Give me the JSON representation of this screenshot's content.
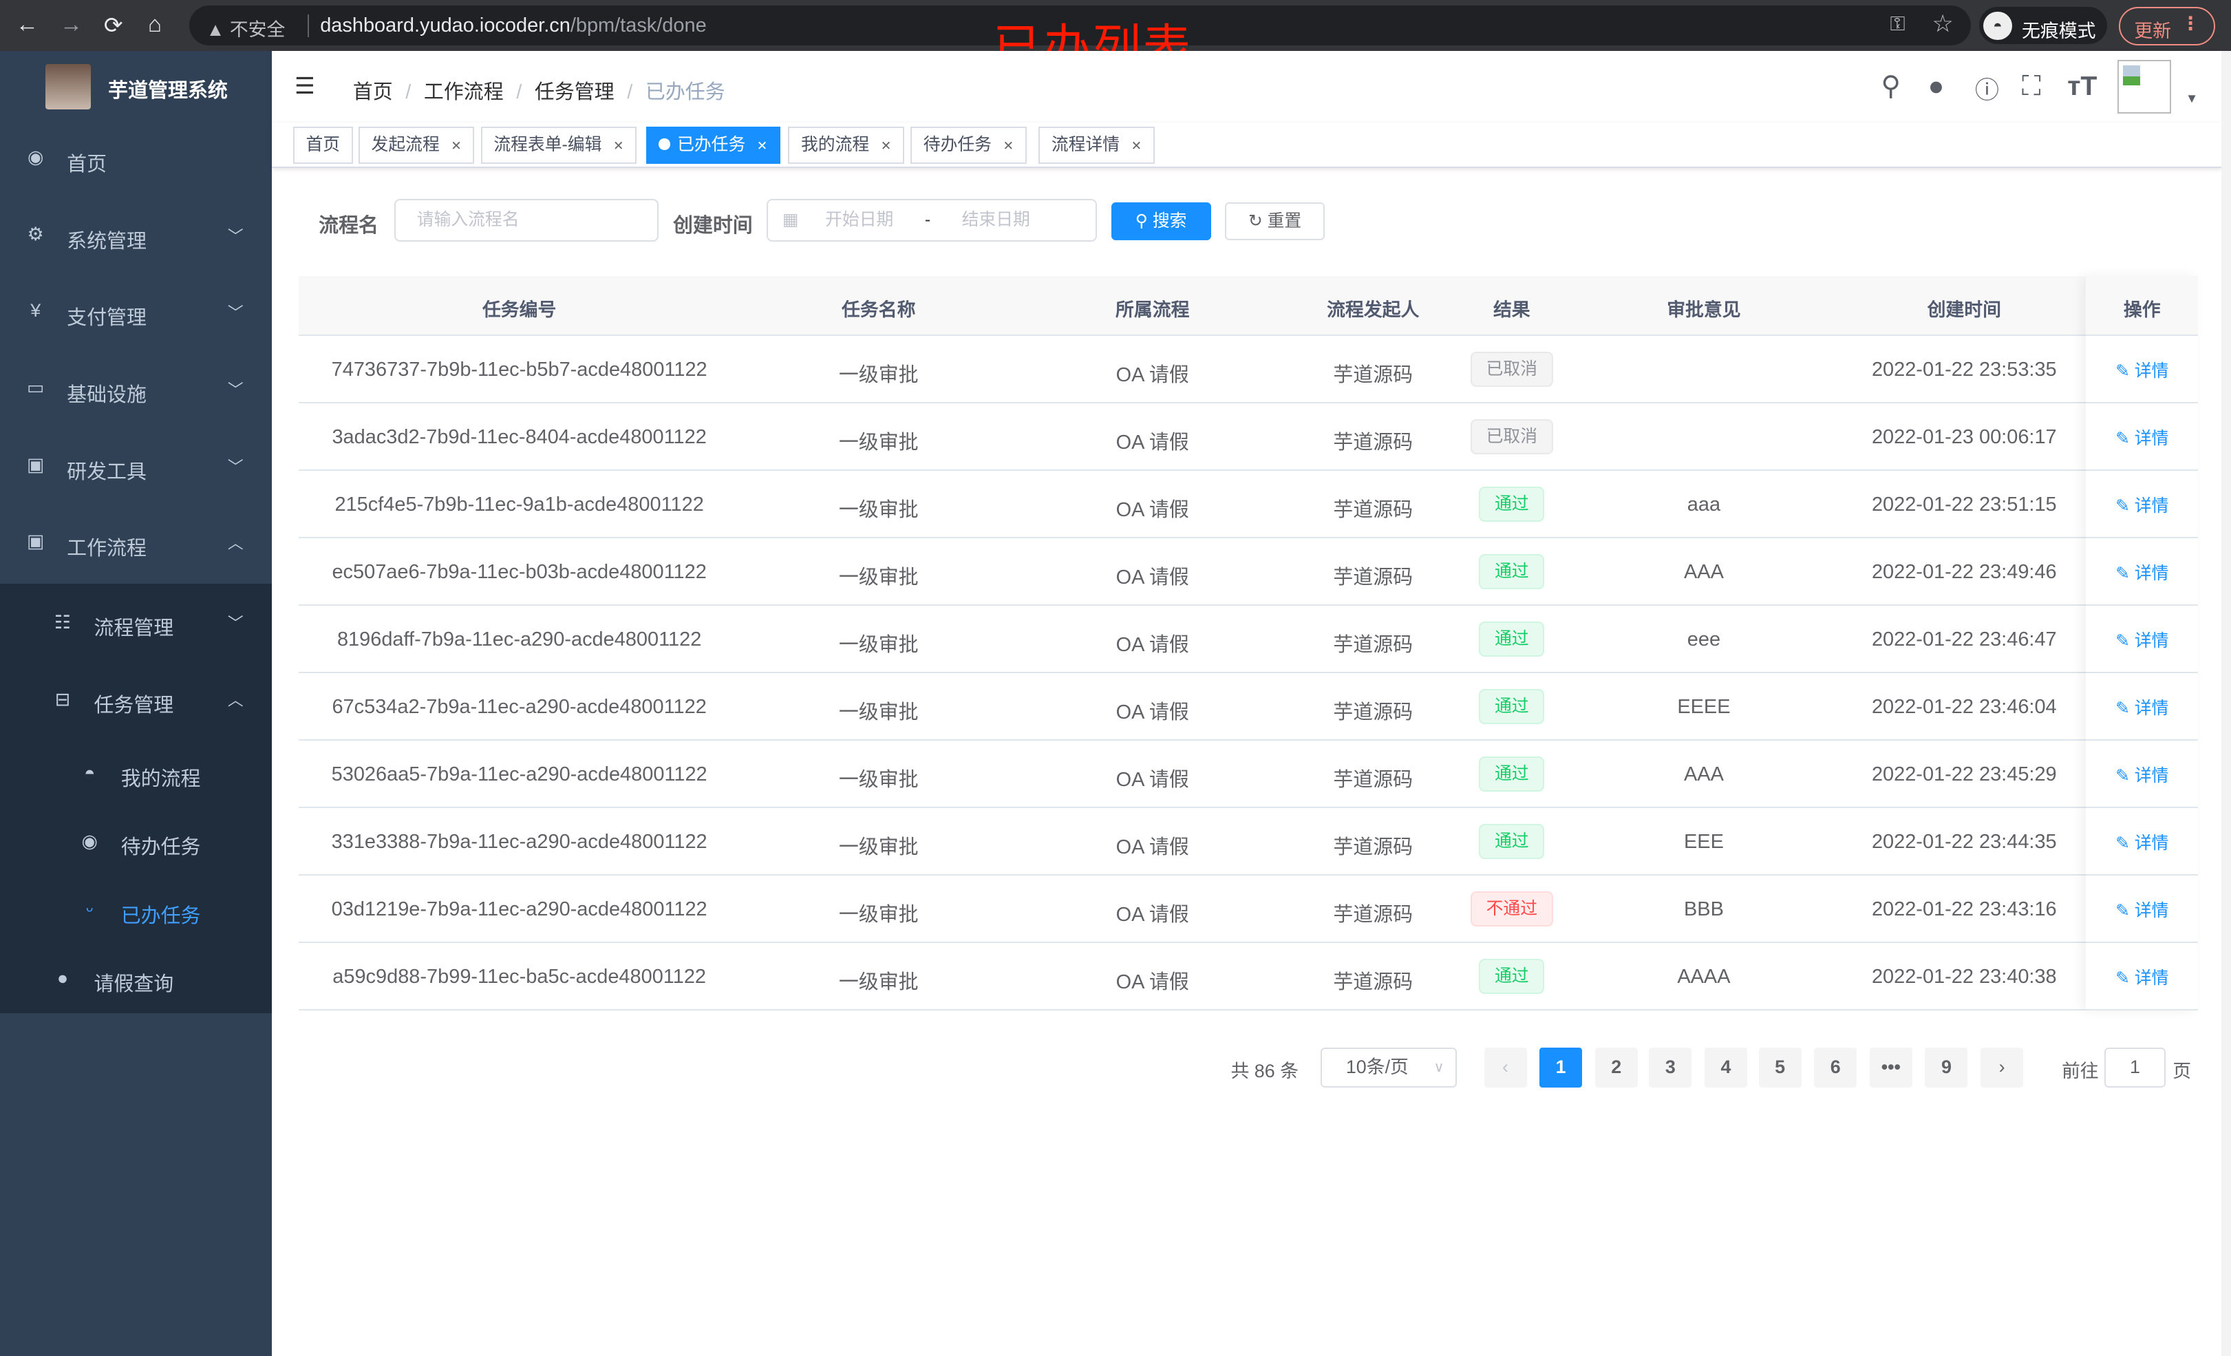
{
  "browser": {
    "back": "←",
    "forward": "→",
    "reload": "⟳",
    "home": "⌂",
    "security": "▲ 不安全",
    "url_host": "dashboard.yudao.iocoder.cn",
    "url_path": "/bpm/task/done",
    "incognito": "无痕模式",
    "update": "更新"
  },
  "overlay_title": "已办列表",
  "sidebar": {
    "title": "芋道管理系统",
    "items": [
      {
        "label": "首页",
        "icon": "dashboard-icon"
      },
      {
        "label": "系统管理",
        "icon": "gear-icon"
      },
      {
        "label": "支付管理",
        "icon": "yen-icon"
      },
      {
        "label": "基础设施",
        "icon": "monitor-icon"
      },
      {
        "label": "研发工具",
        "icon": "toolbox-icon"
      },
      {
        "label": "工作流程",
        "icon": "toolbox-icon"
      }
    ],
    "sub": [
      {
        "label": "流程管理"
      },
      {
        "label": "任务管理"
      },
      {
        "label": "我的流程"
      },
      {
        "label": "待办任务"
      },
      {
        "label": "已办任务"
      },
      {
        "label": "请假查询"
      }
    ]
  },
  "breadcrumb": [
    "首页",
    "工作流程",
    "任务管理",
    "已办任务"
  ],
  "tags": [
    {
      "label": "首页"
    },
    {
      "label": "发起流程"
    },
    {
      "label": "流程表单-编辑"
    },
    {
      "label": "已办任务"
    },
    {
      "label": "我的流程"
    },
    {
      "label": "待办任务"
    },
    {
      "label": "流程详情"
    }
  ],
  "search": {
    "name_label": "流程名",
    "name_placeholder": "请输入流程名",
    "time_label": "创建时间",
    "start_placeholder": "开始日期",
    "sep": "-",
    "end_placeholder": "结束日期",
    "search_btn": "搜索",
    "reset_btn": "重置"
  },
  "table": {
    "columns": [
      "任务编号",
      "任务名称",
      "所属流程",
      "流程发起人",
      "结果",
      "审批意见",
      "创建时间",
      "操作"
    ],
    "rows": [
      [
        "74736737-7b9b-11ec-b5b7-acde48001122",
        "一级审批",
        "OA 请假",
        "芋道源码",
        "已取消",
        "",
        "2022-01-22 23:53:35",
        "详情"
      ],
      [
        "3adac3d2-7b9d-11ec-8404-acde48001122",
        "一级审批",
        "OA 请假",
        "芋道源码",
        "已取消",
        "",
        "2022-01-23 00:06:17",
        "详情"
      ],
      [
        "215cf4e5-7b9b-11ec-9a1b-acde48001122",
        "一级审批",
        "OA 请假",
        "芋道源码",
        "通过",
        "aaa",
        "2022-01-22 23:51:15",
        "详情"
      ],
      [
        "ec507ae6-7b9a-11ec-b03b-acde48001122",
        "一级审批",
        "OA 请假",
        "芋道源码",
        "通过",
        "AAA",
        "2022-01-22 23:49:46",
        "详情"
      ],
      [
        "8196daff-7b9a-11ec-a290-acde48001122",
        "一级审批",
        "OA 请假",
        "芋道源码",
        "通过",
        "eee",
        "2022-01-22 23:46:47",
        "详情"
      ],
      [
        "67c534a2-7b9a-11ec-a290-acde48001122",
        "一级审批",
        "OA 请假",
        "芋道源码",
        "通过",
        "EEEE",
        "2022-01-22 23:46:04",
        "详情"
      ],
      [
        "53026aa5-7b9a-11ec-a290-acde48001122",
        "一级审批",
        "OA 请假",
        "芋道源码",
        "通过",
        "AAA",
        "2022-01-22 23:45:29",
        "详情"
      ],
      [
        "331e3388-7b9a-11ec-a290-acde48001122",
        "一级审批",
        "OA 请假",
        "芋道源码",
        "通过",
        "EEE",
        "2022-01-22 23:44:35",
        "详情"
      ],
      [
        "03d1219e-7b9a-11ec-a290-acde48001122",
        "一级审批",
        "OA 请假",
        "芋道源码",
        "不通过",
        "BBB",
        "2022-01-22 23:43:16",
        "详情"
      ],
      [
        "a59c9d88-7b99-11ec-ba5c-acde48001122",
        "一级审批",
        "OA 请假",
        "芋道源码",
        "通过",
        "AAAA",
        "2022-01-22 23:40:38",
        "详情"
      ]
    ]
  },
  "pagination": {
    "total": "共 86 条",
    "page_size": "10条/页",
    "pages": [
      "1",
      "2",
      "3",
      "4",
      "5",
      "6",
      "•••",
      "9"
    ],
    "current": "1",
    "goto_label": "前往",
    "goto_value": "1",
    "goto_suffix": "页"
  },
  "colors": {
    "accent": "#1890ff",
    "sidebar": "#304156",
    "submenu": "#1f2d3d",
    "success": "#13ce66",
    "danger": "#ff4949"
  }
}
